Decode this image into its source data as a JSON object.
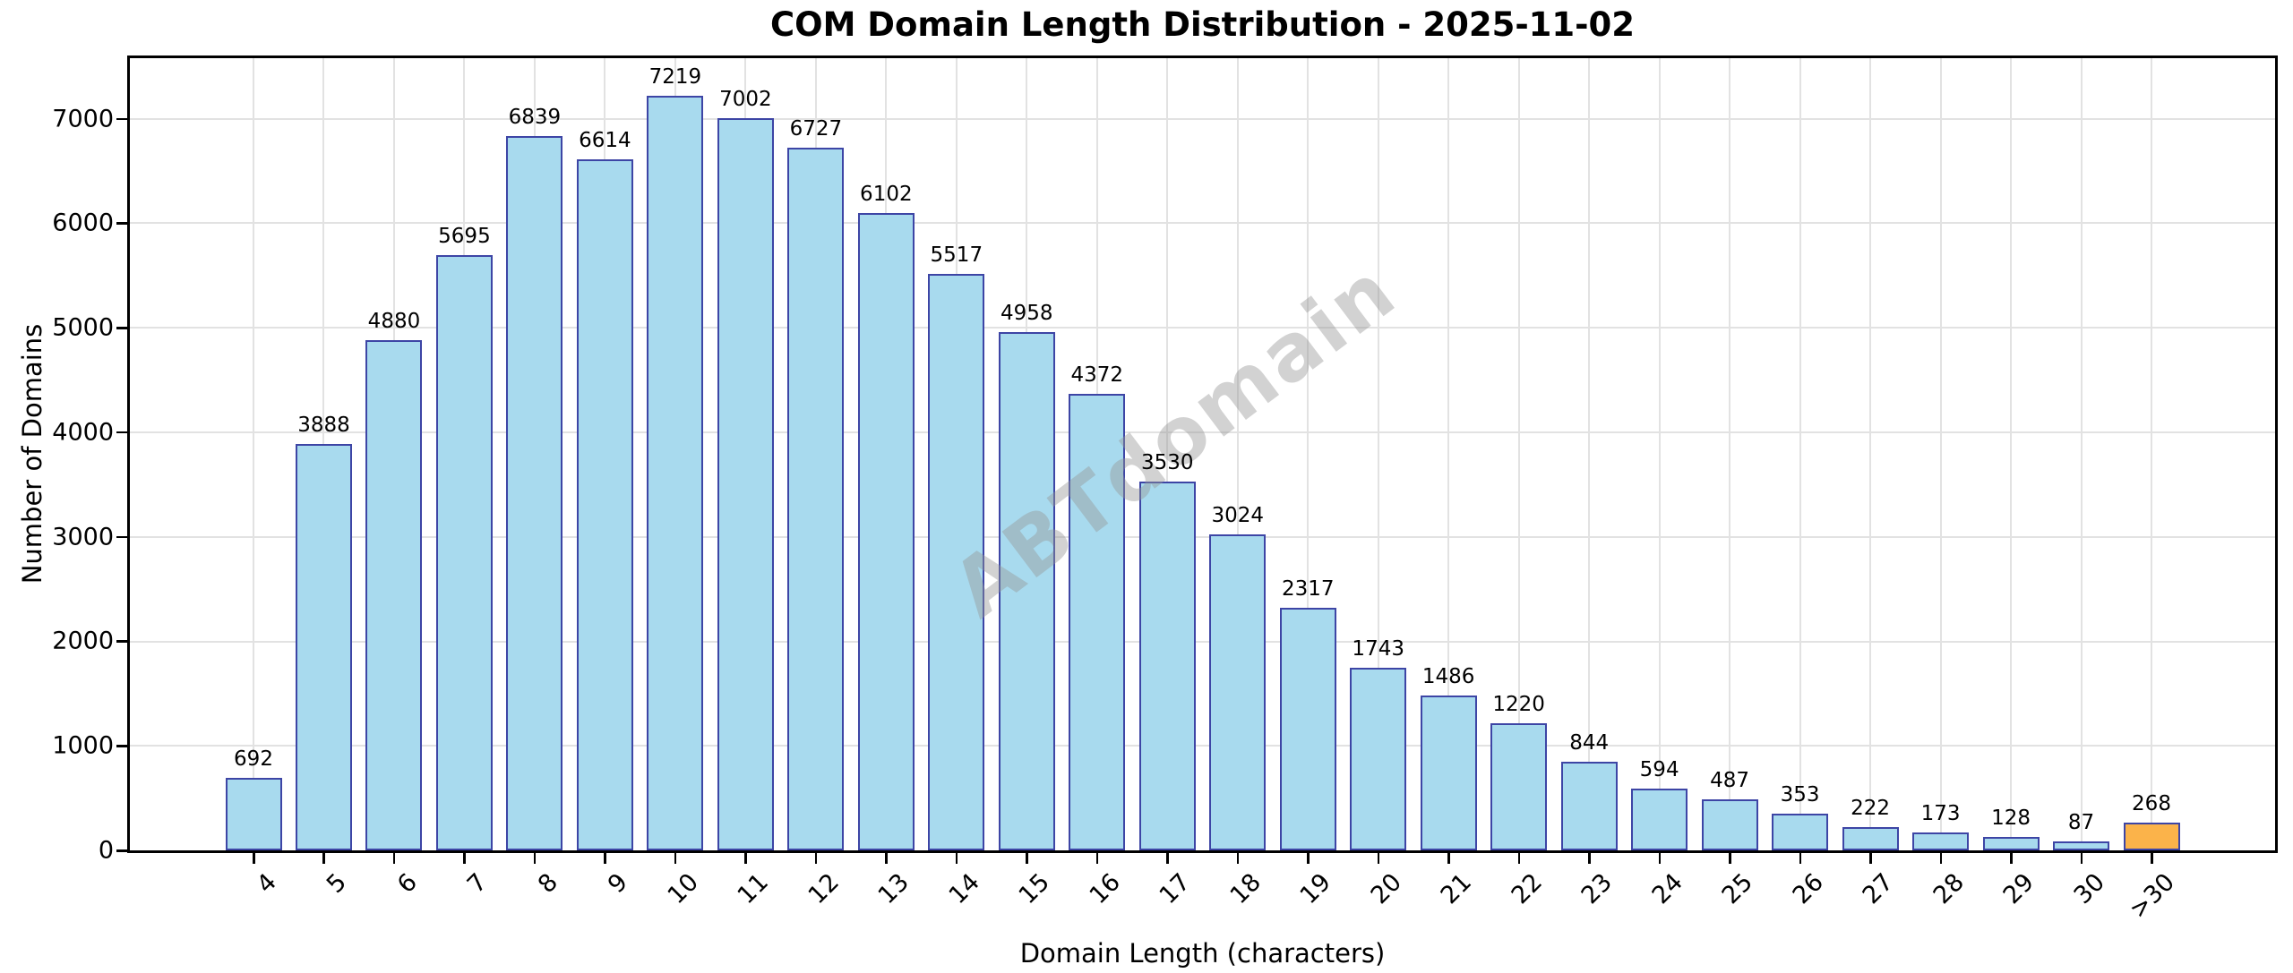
{
  "figure": {
    "title": "COM Domain Length Distribution - 2025-11-02",
    "watermark": "ABTdomain"
  },
  "chart_data": {
    "type": "bar",
    "title": "COM Domain Length Distribution - 2025-11-02",
    "xlabel": "Domain Length (characters)",
    "ylabel": "Number of Domains",
    "categories": [
      "4",
      "5",
      "6",
      "7",
      "8",
      "9",
      "10",
      "11",
      "12",
      "13",
      "14",
      "15",
      "16",
      "17",
      "18",
      "19",
      "20",
      "21",
      "22",
      "23",
      "24",
      "25",
      "26",
      "27",
      "28",
      "29",
      "30",
      ">30"
    ],
    "values": [
      692,
      3888,
      4880,
      5695,
      6839,
      6614,
      7219,
      7002,
      6727,
      6102,
      5517,
      4958,
      4372,
      3530,
      3024,
      2317,
      1743,
      1486,
      1220,
      844,
      594,
      487,
      353,
      222,
      173,
      128,
      87,
      268
    ],
    "bar_value_labels_shown": true,
    "xtick_rotation_deg": 45,
    "ylim": [
      0,
      7580
    ],
    "yticks": [
      0,
      1000,
      2000,
      3000,
      4000,
      5000,
      6000,
      7000
    ],
    "grid": true,
    "legend": "none",
    "watermark_text": "ABTdomain",
    "colors": {
      "bar_fill": "#A8DAEE",
      "bar_edge": "#3D45A5",
      "highlight_fill": "#FBB34A",
      "grid": "#E2E2E2",
      "watermark": "#969696",
      "title": "#000000"
    },
    "highlight_index": 27
  }
}
